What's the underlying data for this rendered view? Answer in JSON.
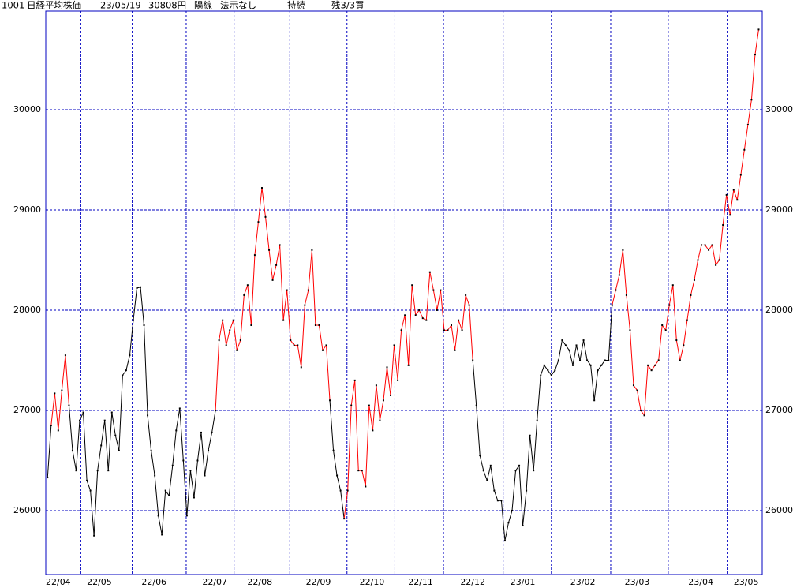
{
  "chart_data": {
    "type": "line",
    "header": {
      "code": "1001",
      "name": "日経平均株価",
      "date": "23/05/19",
      "price": "30808円",
      "candle": "陽線",
      "signal": "法示なし",
      "state": "持続",
      "position": "残3/3買"
    },
    "ylim": [
      25362,
      30984
    ],
    "yticks": [
      26000,
      27000,
      28000,
      29000,
      30000
    ],
    "xlim": [
      -0.5,
      200
    ],
    "xgrid": [
      9.3,
      23.7,
      38.8,
      52.2,
      67.8,
      83.8,
      97.2,
      110.8,
      127.5,
      141,
      157.6,
      173.7,
      190.2
    ],
    "xticks": [
      {
        "value": 3,
        "label": "22/04"
      },
      {
        "value": 14.5,
        "label": "22/05"
      },
      {
        "value": 29.8,
        "label": "22/06"
      },
      {
        "value": 46.8,
        "label": "22/07"
      },
      {
        "value": 59.4,
        "label": "22/08"
      },
      {
        "value": 75.8,
        "label": "22/09"
      },
      {
        "value": 90.8,
        "label": "22/10"
      },
      {
        "value": 104.4,
        "label": "22/11"
      },
      {
        "value": 119,
        "label": "22/12"
      },
      {
        "value": 133,
        "label": "23/01"
      },
      {
        "value": 149.8,
        "label": "23/02"
      },
      {
        "value": 165,
        "label": "23/03"
      },
      {
        "value": 182.8,
        "label": "23/04"
      },
      {
        "value": 195.5,
        "label": "23/05"
      }
    ],
    "grid": true,
    "grid_color": "#0000c0",
    "border_color": "#0000c0",
    "color": "#000000",
    "highlight": {
      "color": "#ff0000",
      "ranges": [
        [
          1,
          6
        ],
        [
          47,
          79
        ],
        [
          83,
          119
        ],
        [
          158,
          199
        ]
      ]
    },
    "values": [
      26330,
      26850,
      27170,
      26800,
      27200,
      27550,
      27050,
      26600,
      26400,
      26900,
      26980,
      26300,
      26200,
      25750,
      26400,
      26650,
      26900,
      26400,
      26980,
      26750,
      26600,
      27350,
      27400,
      27550,
      27900,
      28220,
      28230,
      27850,
      26950,
      26600,
      26350,
      25950,
      25760,
      26200,
      26150,
      26450,
      26800,
      27020,
      26500,
      25950,
      26400,
      26130,
      26500,
      26780,
      26350,
      26600,
      26780,
      27000,
      27700,
      27900,
      27650,
      27800,
      27900,
      27600,
      27700,
      28150,
      28250,
      27850,
      28550,
      28880,
      29220,
      28930,
      28600,
      28300,
      28450,
      28650,
      27900,
      28200,
      27700,
      27650,
      27650,
      27430,
      28050,
      28200,
      28600,
      27850,
      27850,
      27600,
      27650,
      27100,
      26600,
      26350,
      26200,
      25920,
      26200,
      27050,
      27300,
      26400,
      26400,
      26240,
      27050,
      26800,
      27250,
      26900,
      27100,
      27430,
      27150,
      27650,
      27300,
      27800,
      27950,
      27450,
      28250,
      27950,
      28000,
      27920,
      27900,
      28380,
      28200,
      28000,
      28200,
      27800,
      27800,
      27850,
      27600,
      27900,
      27800,
      28150,
      28050,
      27500,
      27050,
      26550,
      26400,
      26300,
      26450,
      26200,
      26100,
      26100,
      25700,
      25880,
      26000,
      26400,
      26450,
      25850,
      26200,
      26750,
      26400,
      26900,
      27350,
      27450,
      27400,
      27350,
      27400,
      27500,
      27700,
      27650,
      27600,
      27450,
      27650,
      27500,
      27700,
      27500,
      27450,
      27100,
      27400,
      27450,
      27500,
      27500,
      28050,
      28200,
      28350,
      28600,
      28150,
      27800,
      27250,
      27200,
      27000,
      26950,
      27450,
      27400,
      27450,
      27500,
      27850,
      27800,
      28050,
      28250,
      27700,
      27500,
      27650,
      27900,
      28150,
      28300,
      28500,
      28650,
      28650,
      28600,
      28650,
      28450,
      28500,
      28850,
      29150,
      28950,
      29200,
      29100,
      29350,
      29600,
      29850,
      30100,
      30550,
      30800
    ]
  }
}
